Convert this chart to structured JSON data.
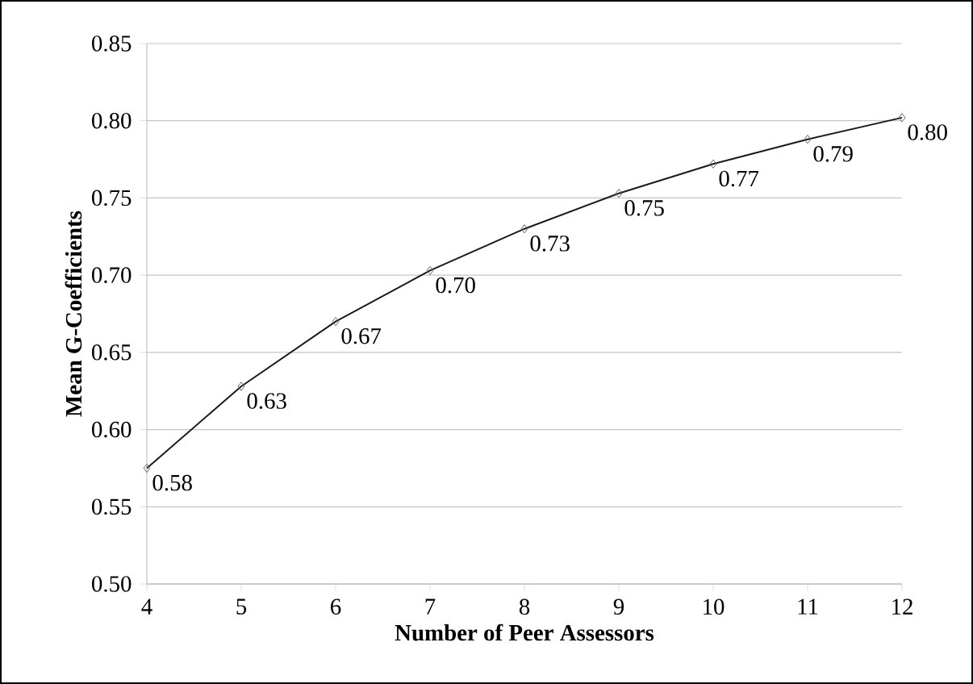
{
  "chart_data": {
    "type": "line",
    "xlabel": "Number of Peer Assessors",
    "ylabel": "Mean G-Coefficients",
    "x": [
      4,
      5,
      6,
      7,
      8,
      9,
      10,
      11,
      12
    ],
    "series": [
      {
        "color": "#1a1a1a",
        "values": [
          0.575,
          0.628,
          0.67,
          0.703,
          0.73,
          0.753,
          0.772,
          0.788,
          0.802
        ],
        "value_labels": [
          "0.58",
          "0.63",
          "0.67",
          "0.70",
          "0.73",
          "0.75",
          "0.77",
          "0.79",
          "0.80"
        ]
      }
    ],
    "xlim": [
      4,
      12
    ],
    "xticks": [
      4,
      5,
      6,
      7,
      8,
      9,
      10,
      11,
      12
    ],
    "ylim": [
      0.5,
      0.85
    ],
    "yticks": [
      {
        "value": 0.5,
        "label": "0.50"
      },
      {
        "value": 0.55,
        "label": "0.55"
      },
      {
        "value": 0.6,
        "label": "0.60"
      },
      {
        "value": 0.65,
        "label": "0.65"
      },
      {
        "value": 0.7,
        "label": "0.70"
      },
      {
        "value": 0.75,
        "label": "0.75"
      },
      {
        "value": 0.8,
        "label": "0.80"
      },
      {
        "value": 0.85,
        "label": "0.85"
      }
    ],
    "grid": "y",
    "marker": "diamond",
    "line_style": "solid"
  }
}
